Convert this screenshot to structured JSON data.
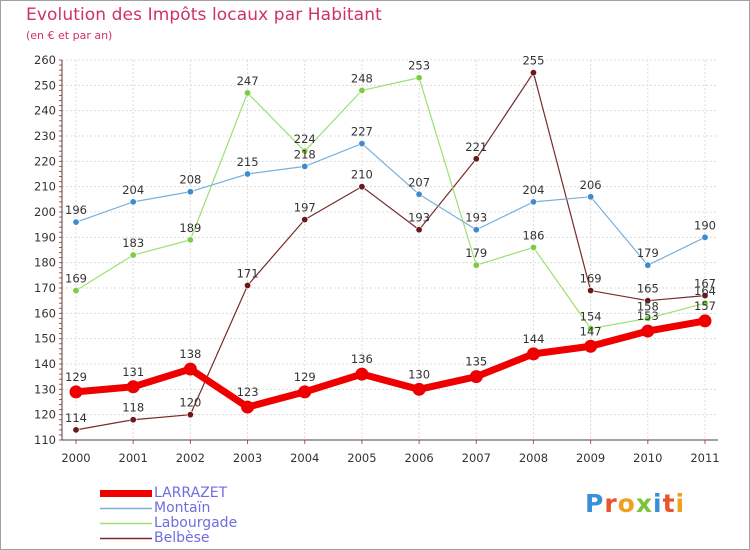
{
  "title": "Evolution des Impôts locaux par Habitant",
  "subtitle": "(en € et par an)",
  "logo": {
    "text": "Proxiti",
    "colors": [
      "#3a8fd8",
      "#e8542c",
      "#f0a020",
      "#7dc23c",
      "#3a8fd8",
      "#e8542c",
      "#f0a020"
    ]
  },
  "chart_data": {
    "type": "line",
    "title": "Evolution des Impôts locaux par Habitant",
    "subtitle": "(en € et par an)",
    "xlabel": "",
    "ylabel": "",
    "ylim": [
      110,
      260
    ],
    "yticks": [
      110,
      120,
      130,
      140,
      150,
      160,
      170,
      180,
      190,
      200,
      210,
      220,
      230,
      240,
      250,
      260
    ],
    "categories": [
      "2000",
      "2001",
      "2002",
      "2003",
      "2004",
      "2005",
      "2006",
      "2007",
      "2008",
      "2009",
      "2010",
      "2011"
    ],
    "grid": true,
    "legend_position": "bottom-left",
    "series": [
      {
        "name": "Belbèse",
        "color": "#7a2a2a",
        "dot": "#6a1818",
        "width": 1.2,
        "radius": 3.2,
        "labelColor": "#333333",
        "values": [
          114,
          118,
          120,
          171,
          197,
          210,
          193,
          221,
          255,
          169,
          165,
          167
        ]
      },
      {
        "name": "Labourgade",
        "color": "#9ee070",
        "dot": "#7ccc44",
        "width": 1.2,
        "radius": 3.2,
        "labelColor": "#333333",
        "values": [
          169,
          183,
          189,
          247,
          224,
          248,
          253,
          179,
          186,
          154,
          158,
          164
        ]
      },
      {
        "name": "Montaïn",
        "color": "#7ab0dc",
        "dot": "#3e8cd0",
        "width": 1.2,
        "radius": 3.2,
        "labelColor": "#333333",
        "values": [
          196,
          204,
          208,
          215,
          218,
          227,
          207,
          193,
          204,
          206,
          179,
          190
        ]
      },
      {
        "name": "LARRAZET",
        "color": "#ee0000",
        "dot": "#ee0000",
        "width": 7,
        "radius": 6.5,
        "labelColor": "#333333",
        "values": [
          129,
          131,
          138,
          123,
          129,
          136,
          130,
          135,
          144,
          147,
          153,
          157
        ]
      }
    ],
    "legend": [
      "LARRAZET",
      "Montaïn",
      "Labourgade",
      "Belbèse"
    ]
  }
}
